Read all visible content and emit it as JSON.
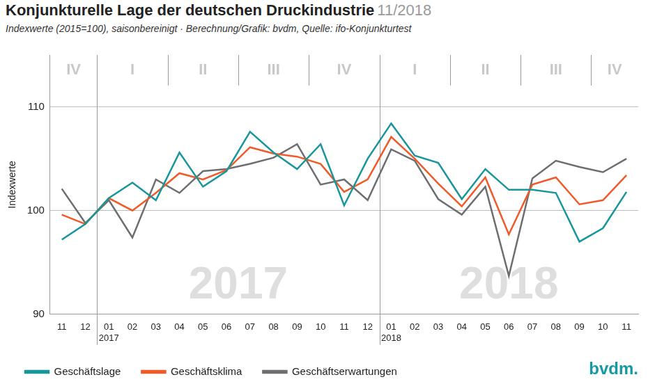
{
  "chart_data": {
    "type": "line",
    "title": "Konjunkturelle Lage der deutschen Druckindustrie",
    "title_date": "11/2018",
    "subtitle": "Indexwerte (2015=100), saisonbereinigt · Berechnung/Grafik: bvdm, Quelle: ifo-Konjunkturtest",
    "y_label": "Indexwerte",
    "logo": "bvdm.",
    "categories": [
      "11",
      "12",
      "01",
      "02",
      "03",
      "04",
      "05",
      "06",
      "07",
      "08",
      "09",
      "10",
      "11",
      "12",
      "01",
      "02",
      "03",
      "04",
      "05",
      "06",
      "07",
      "08",
      "09",
      "10",
      "11"
    ],
    "years": [
      "2017",
      "2018"
    ],
    "quarters": [
      "IV",
      "I",
      "II",
      "III",
      "IV",
      "I",
      "II",
      "III",
      "IV"
    ],
    "series": [
      {
        "name": "Geschäftslage",
        "color": "#17969c",
        "values": [
          97.2,
          98.7,
          101.2,
          102.7,
          101.0,
          105.6,
          102.3,
          103.8,
          107.6,
          105.6,
          104.0,
          106.4,
          100.5,
          105.0,
          108.4,
          105.3,
          104.6,
          101.1,
          104.0,
          102.0,
          102.0,
          101.7,
          97.0,
          98.3,
          101.8
        ]
      },
      {
        "name": "Geschäftsklima",
        "color": "#f05a28",
        "values": [
          99.6,
          98.7,
          101.2,
          100.0,
          101.7,
          103.6,
          103.0,
          103.9,
          106.1,
          105.5,
          105.2,
          104.5,
          101.8,
          103.0,
          107.1,
          105.0,
          102.6,
          100.4,
          103.2,
          97.7,
          102.5,
          103.2,
          100.6,
          101.0,
          103.4
        ]
      },
      {
        "name": "Geschäftserwartungen",
        "color": "#6d6e71",
        "values": [
          102.1,
          98.8,
          101.0,
          97.4,
          103.0,
          101.7,
          103.8,
          104.0,
          104.5,
          105.1,
          106.4,
          102.5,
          103.0,
          101.0,
          105.9,
          104.8,
          101.1,
          99.6,
          102.3,
          93.7,
          103.1,
          104.8,
          104.2,
          103.7,
          105.0
        ]
      }
    ],
    "ylim": [
      90,
      115
    ],
    "yticks": [
      90,
      100,
      110
    ],
    "grid": true,
    "legend": "bottom-left"
  }
}
